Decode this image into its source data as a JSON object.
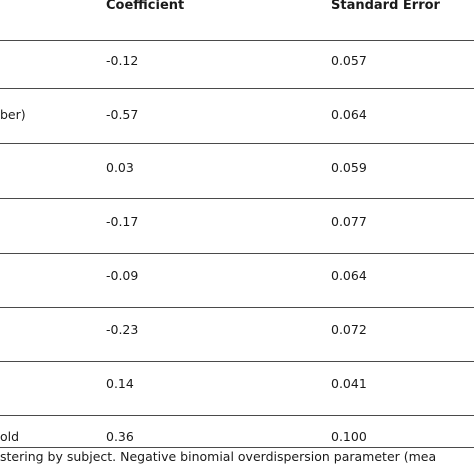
{
  "table": {
    "columns": {
      "coefficient": "Coefficient",
      "standard_error": "Standard Error"
    },
    "rows": [
      {
        "label": "",
        "coefficient": "-0.12",
        "standard_error": "0.057"
      },
      {
        "label": "ber)",
        "coefficient": "-0.57",
        "standard_error": "0.064"
      },
      {
        "label": "",
        "coefficient": "0.03",
        "standard_error": "0.059"
      },
      {
        "label": "",
        "coefficient": "-0.17",
        "standard_error": "0.077"
      },
      {
        "label": "",
        "coefficient": "-0.09",
        "standard_error": "0.064"
      },
      {
        "label": "",
        "coefficient": "-0.23",
        "standard_error": "0.072"
      },
      {
        "label": "",
        "coefficient": "0.14",
        "standard_error": "0.041"
      },
      {
        "label": "old",
        "coefficient": "0.36",
        "standard_error": "0.100"
      }
    ],
    "footnote": "stering by subject. Negative binomial overdispersion parameter (mea"
  }
}
